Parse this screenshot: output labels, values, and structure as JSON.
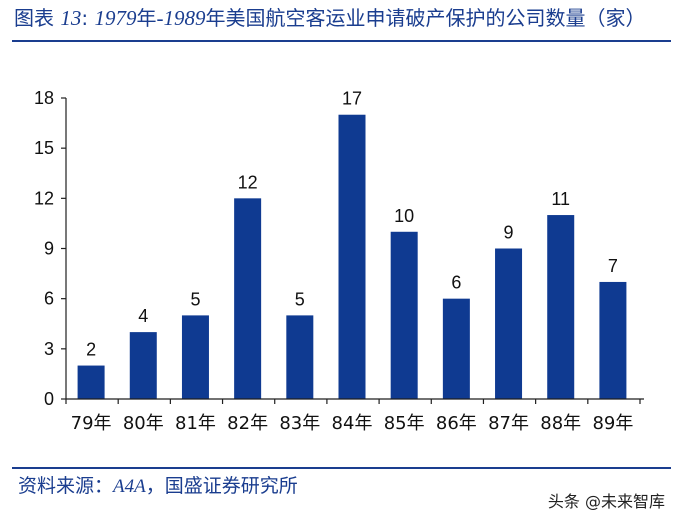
{
  "title": {
    "prefix": "图表",
    "number": "13",
    "colon": ":",
    "year_start": "1979",
    "year_unit_1": "年",
    "dash": "-",
    "year_end": "1989",
    "rest": "年美国航空客运业申请破产保护的公司数量（家）"
  },
  "source": {
    "label": "资料来源：",
    "org": "A4A",
    "rest": "，国盛证券研究所"
  },
  "watermark": {
    "text": "头条 @未来智库"
  },
  "colors": {
    "bar": "#0f3a91",
    "axis": "#1f1f1f",
    "title": "#1a3d8f"
  },
  "chart_data": {
    "type": "bar",
    "title": "1979年-1989年美国航空客运业申请破产保护的公司数量（家）",
    "xlabel": "",
    "ylabel": "",
    "ylim": [
      0,
      18
    ],
    "yticks": [
      0,
      3,
      6,
      9,
      12,
      15,
      18
    ],
    "grid": false,
    "categories": [
      "79年",
      "80年",
      "81年",
      "82年",
      "83年",
      "84年",
      "85年",
      "86年",
      "87年",
      "88年",
      "89年"
    ],
    "values": [
      2,
      4,
      5,
      12,
      5,
      17,
      10,
      6,
      9,
      11,
      7
    ]
  }
}
